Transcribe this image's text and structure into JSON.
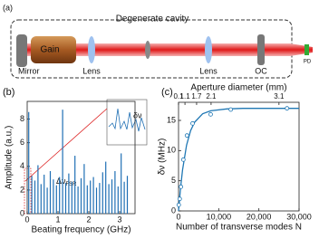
{
  "panel_a": {
    "label": "(a)",
    "cavity": "Degenerate cavity",
    "gain": "Gain",
    "mirror": "Mirror",
    "lens_left": "Lens",
    "lens_right": "Lens",
    "oc": "OC",
    "pd": "PD"
  },
  "chart_data": [
    {
      "type": "spectrum",
      "panel": "(b)",
      "xlabel": "Beating frequency (GHz)",
      "ylabel": "Amplitude (a.u.)",
      "annotation": "Δν",
      "annotation_sub": "FSR",
      "inset_label": "δν",
      "x": [
        0.05,
        0.15,
        0.25,
        0.35,
        0.45,
        0.55,
        0.65,
        0.75,
        0.85,
        0.95,
        1.05,
        1.15,
        1.25,
        1.35,
        1.45,
        1.55,
        1.65,
        1.75,
        1.85,
        1.95,
        2.05,
        2.15,
        2.25,
        2.35,
        2.45,
        2.55,
        2.65,
        2.75,
        2.85,
        2.95,
        3.05,
        3.15,
        3.25
      ],
      "values": [
        8.6,
        3.2,
        2.8,
        4.1,
        2.5,
        3.3,
        2.2,
        3.6,
        2.9,
        2.4,
        3.1,
        8.8,
        2.6,
        3.4,
        2.7,
        4.9,
        2.3,
        3.0,
        4.2,
        2.4,
        2.8,
        3.1,
        2.2,
        2.6,
        3.5,
        4.4,
        2.5,
        2.9,
        3.6,
        2.3,
        5.1,
        2.7,
        3.2
      ],
      "color": "#1f6fb4",
      "xlim": [
        0,
        3.5
      ],
      "ylim": [
        0,
        9.5
      ],
      "xticks": [
        0,
        1,
        2,
        3
      ],
      "yticks": [
        0,
        2,
        4,
        6,
        8
      ]
    },
    {
      "type": "scatter",
      "panel": "(c)",
      "xlabel": "Number of transverse modes N",
      "ylabel": "δν (MHz)",
      "x2label": "Aperture diameter (mm)",
      "x": [
        60,
        300,
        600,
        1200,
        2100,
        3500,
        8000,
        13000,
        27000
      ],
      "values": [
        1,
        2,
        4,
        8.5,
        12.5,
        14.5,
        16,
        16.8,
        17
      ],
      "color": "#1f77b4",
      "fit": {
        "x": [
          0,
          500,
          1000,
          2000,
          3000,
          4000,
          6000,
          8000,
          12000,
          16000,
          20000,
          25000,
          30000
        ],
        "values": [
          0,
          3.8,
          6.8,
          10.9,
          13.3,
          14.7,
          16.1,
          16.6,
          16.9,
          17,
          17,
          17,
          17
        ]
      },
      "xlim": [
        0,
        30000
      ],
      "ylim": [
        0,
        18
      ],
      "xticks": [
        0,
        {
          "value": 10000,
          "label": "10,000"
        },
        {
          "value": 20000,
          "label": "20,000"
        },
        {
          "value": 30000,
          "label": "30,000"
        }
      ],
      "yticks": [
        0,
        5,
        10,
        15
      ],
      "x2ticks": [
        {
          "value": 0,
          "label": "0.1"
        },
        {
          "value": 1600,
          "label": "1.1"
        },
        {
          "value": 4500,
          "label": "1.7"
        },
        {
          "value": 8100,
          "label": "2.1"
        },
        {
          "value": 25000,
          "label": "3.1"
        }
      ]
    }
  ]
}
